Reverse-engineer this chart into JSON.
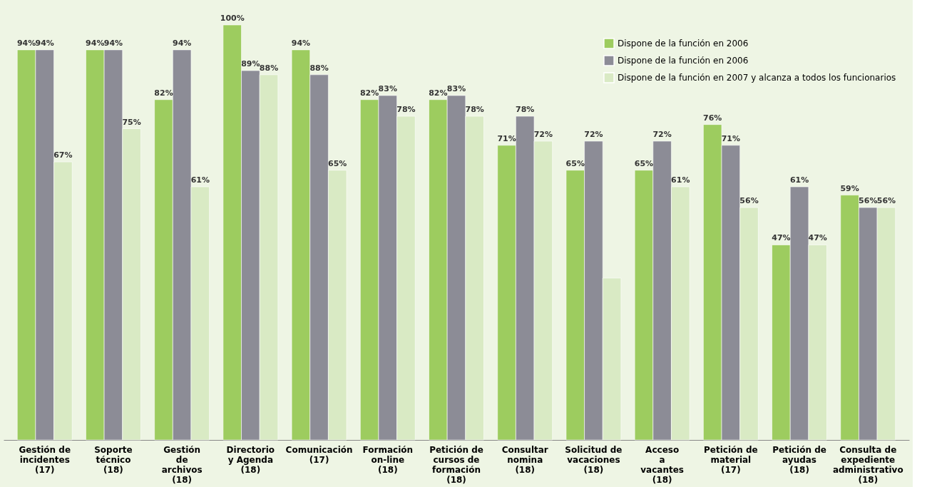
{
  "chart_data": {
    "type": "bar",
    "categories": [
      "Gestión de\nincidentes\n(17)",
      "Soporte\ntécnico\n(18)",
      "Gestión\nde\narchivos\n(18)",
      "Directorio\ny Agenda\n(18)",
      "Comunicación\n(17)",
      "Formación\non-line\n(18)",
      "Petición de\ncursos de\nformación\n(18)",
      "Consultar\nnomina\n(18)",
      "Solicitud de\nvacaciones\n(18)",
      "Acceso\na\nvacantes\n(18)",
      "Petición de\nmaterial\n(17)",
      "Petición de\nayudas\n(18)",
      "Consulta de\nexpediente\nadministrativo\n(18)"
    ],
    "series": [
      {
        "name": "Dispone de la función en 2006",
        "color": "#9dcc5f",
        "values": [
          94,
          94,
          82,
          100,
          94,
          82,
          82,
          71,
          65,
          65,
          76,
          47,
          59
        ],
        "value_labels": [
          "94%",
          "94%",
          "82%",
          "100%",
          "94%",
          "82%",
          "82%",
          "71%",
          "65%",
          "65%",
          "76%",
          "47%",
          "59%"
        ]
      },
      {
        "name": "Dispone de la función en 2006",
        "color": "#8c8c96",
        "values": [
          94,
          94,
          94,
          89,
          88,
          83,
          83,
          78,
          72,
          72,
          71,
          61,
          56
        ],
        "value_labels": [
          "94%",
          "94%",
          "94%",
          "89%",
          "88%",
          "83%",
          "83%",
          "78%",
          "72%",
          "72%",
          "71%",
          "61%",
          "56%"
        ]
      },
      {
        "name": "Dispone de la función en 2007 y alcanza a todos los funcionarios",
        "color": "#d9eac4",
        "values": [
          67,
          75,
          61,
          88,
          65,
          78,
          78,
          72,
          39,
          61,
          56,
          47,
          56
        ],
        "value_labels": [
          "67%",
          "75%",
          "61%",
          "88%",
          "65%",
          "78%",
          "78%",
          "72%",
          null,
          "61%",
          "56%",
          "47%",
          "56%"
        ]
      }
    ],
    "legend": "top right",
    "grid": false,
    "tick_labels": "x"
  }
}
